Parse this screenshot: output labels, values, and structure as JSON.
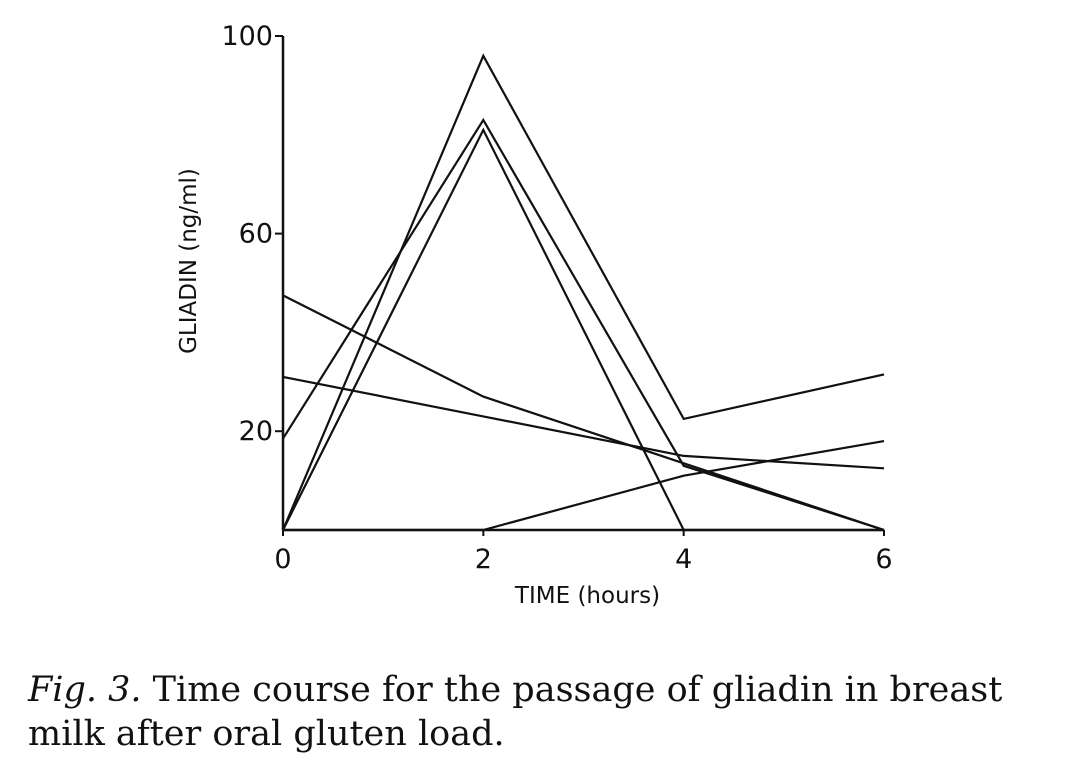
{
  "chart_data": {
    "type": "line",
    "xlabel": "TIME (hours)",
    "ylabel": "GLIADIN (ng/ml)",
    "x": [
      0,
      2,
      4,
      6
    ],
    "xlim": [
      0,
      6
    ],
    "ylim": [
      0,
      100
    ],
    "xticks": [
      "0",
      "2",
      "4",
      "6"
    ],
    "yticks": [
      "20",
      "60",
      "100"
    ],
    "ytick_values": [
      20,
      60,
      100
    ],
    "grid": false,
    "line_color": "#111111",
    "series": [
      {
        "values": [
          0,
          96,
          22.5,
          31.5
        ]
      },
      {
        "values": [
          18.5,
          83,
          13,
          0
        ]
      },
      {
        "values": [
          0,
          81,
          0,
          0
        ]
      },
      {
        "values": [
          47.5,
          27,
          13.5,
          0
        ]
      },
      {
        "values": [
          31,
          23,
          15,
          12.5
        ]
      },
      {
        "values": [
          0,
          0,
          11,
          18
        ]
      }
    ]
  },
  "caption": {
    "fig_label": "Fig. 3.",
    "text": " Time course for the passage of gliadin in breast milk after oral gluten load."
  }
}
